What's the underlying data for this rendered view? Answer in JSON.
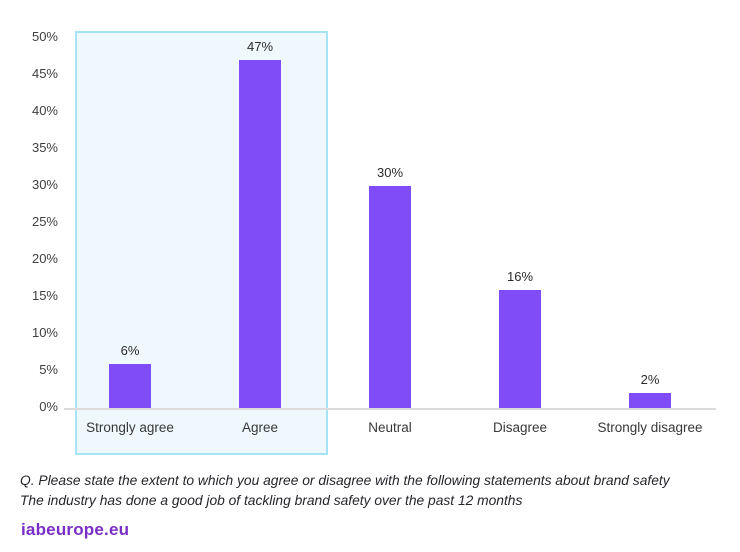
{
  "chart_data": {
    "type": "bar",
    "title": "",
    "xlabel": "",
    "ylabel": "",
    "categories": [
      "Strongly agree",
      "Agree",
      "Neutral",
      "Disagree",
      "Strongly disagree"
    ],
    "values": [
      6,
      47,
      30,
      16,
      2
    ],
    "value_labels": [
      "6%",
      "47%",
      "30%",
      "16%",
      "2%"
    ],
    "ylim": [
      0,
      50
    ],
    "yticks": [
      "0%",
      "5%",
      "10%",
      "15%",
      "20%",
      "25%",
      "30%",
      "35%",
      "40%",
      "45%",
      "50%"
    ],
    "grid": false,
    "legend": "none",
    "bar_color": "#7f4cf8",
    "axis_line_color": "#dcdcdc",
    "highlight": {
      "categories": [
        "Strongly agree",
        "Agree"
      ],
      "border_color": "#a5e3f5",
      "fill_color": "#eff8fd"
    }
  },
  "footnote": {
    "line1": "Q. Please state the extent to which you agree or disagree with the following statements about brand safety",
    "line2": "The industry has done a good job of tackling brand safety over the past 12 months"
  },
  "footer": {
    "logo_text": "iabeurope.eu",
    "logo_color": "#7a2ec8"
  }
}
